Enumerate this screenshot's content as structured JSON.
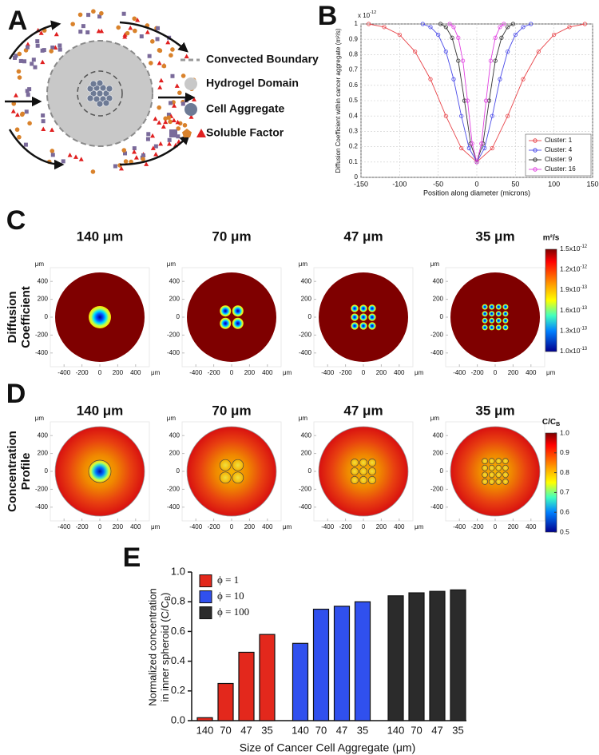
{
  "panel_labels": [
    "A",
    "B",
    "C",
    "D",
    "E"
  ],
  "diagram": {
    "legend": [
      "Convected Boundary",
      "Hydrogel Domain",
      "Cell Aggregate",
      "Soluble Factor"
    ]
  },
  "chart_data": [
    {
      "type": "line",
      "exponent": {
        "base": "x 10",
        "exp": "-12"
      },
      "xlabel": "Position along diameter (microns)",
      "ylabel": "Diffusion Coefficient within cancer aggregate (m²/s)",
      "xlim": [
        -150,
        150
      ],
      "ylim": [
        0,
        1
      ],
      "xticks": [
        -150,
        -100,
        -50,
        0,
        50,
        100,
        150
      ],
      "yticks": [
        0,
        0.1,
        0.2,
        0.3,
        0.4,
        0.5,
        0.6,
        0.7,
        0.8,
        0.9,
        1
      ],
      "grid": true,
      "legend": "lower right",
      "series": [
        {
          "name": "Cluster: 1",
          "color": "#e8454a",
          "x": [
            -140,
            -120,
            -100,
            -80,
            -60,
            -40,
            -20,
            0,
            20,
            40,
            60,
            80,
            100,
            120,
            140
          ],
          "values": [
            1.0,
            0.98,
            0.93,
            0.82,
            0.64,
            0.4,
            0.19,
            0.1,
            0.19,
            0.4,
            0.64,
            0.82,
            0.93,
            0.98,
            1.0
          ]
        },
        {
          "name": "Cluster: 4",
          "color": "#4a4ae8",
          "x": [
            -70,
            -60,
            -50,
            -40,
            -30,
            -20,
            -10,
            0,
            10,
            20,
            30,
            40,
            50,
            60,
            70
          ],
          "values": [
            1.0,
            0.98,
            0.93,
            0.82,
            0.64,
            0.4,
            0.19,
            0.1,
            0.19,
            0.4,
            0.64,
            0.82,
            0.93,
            0.98,
            1.0
          ]
        },
        {
          "name": "Cluster: 9",
          "color": "#333333",
          "x": [
            -47,
            -40,
            -32,
            -24,
            -16,
            -8,
            0,
            8,
            16,
            24,
            32,
            40,
            47
          ],
          "values": [
            1.0,
            0.98,
            0.91,
            0.76,
            0.5,
            0.22,
            0.1,
            0.22,
            0.5,
            0.76,
            0.91,
            0.98,
            1.0
          ]
        },
        {
          "name": "Cluster: 16",
          "color": "#e040e0",
          "x": [
            -35,
            -30,
            -24,
            -18,
            -12,
            -6,
            0,
            6,
            12,
            18,
            24,
            30,
            35
          ],
          "values": [
            1.0,
            0.98,
            0.91,
            0.76,
            0.5,
            0.22,
            0.1,
            0.22,
            0.5,
            0.76,
            0.91,
            0.98,
            1.0
          ]
        }
      ]
    },
    {
      "type": "bar",
      "ylabel": [
        "Normalized concentration",
        "in inner spheroid (C/C",
        "B",
        ")"
      ],
      "xlabel": "Size of Cancer Cell Aggregate (μm)",
      "categories": [
        "140",
        "70",
        "47",
        "35"
      ],
      "ylim": [
        0,
        1
      ],
      "yticks": [
        {
          "value": 0,
          "label": "0.0"
        },
        0.2,
        0.4,
        0.6,
        0.8,
        {
          "value": 1,
          "label": "1.0"
        }
      ],
      "legend": "upper left",
      "series": [
        {
          "name": "ϕ = 1",
          "color": "#e3281c",
          "values": [
            0.02,
            0.25,
            0.46,
            0.58
          ]
        },
        {
          "name": "ϕ = 10",
          "color": "#3050ee",
          "values": [
            0.52,
            0.75,
            0.77,
            0.8
          ]
        },
        {
          "name": "ϕ = 100",
          "color": "#2b2b2b",
          "values": [
            0.84,
            0.86,
            0.87,
            0.88
          ]
        }
      ]
    }
  ],
  "maps": {
    "titles": [
      "140 μm",
      "70 μm",
      "47 μm",
      "35 μm"
    ],
    "xlim": [
      -500,
      500
    ],
    "ticks": [
      -400,
      -200,
      0,
      200,
      400
    ],
    "unit": "μm",
    "rows": [
      {
        "label": [
          "Diffusion",
          "Coefficient"
        ],
        "colorbar": {
          "unit": "m²/s",
          "labels": [
            {
              "base": "1.5x10",
              "exp": "-12"
            },
            {
              "base": "1.2x10",
              "exp": "-12"
            },
            {
              "base": "1.9x10",
              "exp": "-13"
            },
            {
              "base": "1.6x10",
              "exp": "-13"
            },
            {
              "base": "1.3x10",
              "exp": "-13"
            },
            {
              "base": "1.0x10",
              "exp": "-13"
            }
          ]
        }
      },
      {
        "label": [
          "Concentration",
          "Profile"
        ],
        "colorbar": {
          "unit": "C/C",
          "unit_sub": "B",
          "ylim": [
            0.5,
            1
          ],
          "ticks": [
            {
              "value": 1,
              "label": "1.0"
            },
            0.9,
            0.8,
            0.7,
            0.6,
            {
              "value": 0.5,
              "label": "0.5"
            }
          ]
        }
      }
    ]
  }
}
